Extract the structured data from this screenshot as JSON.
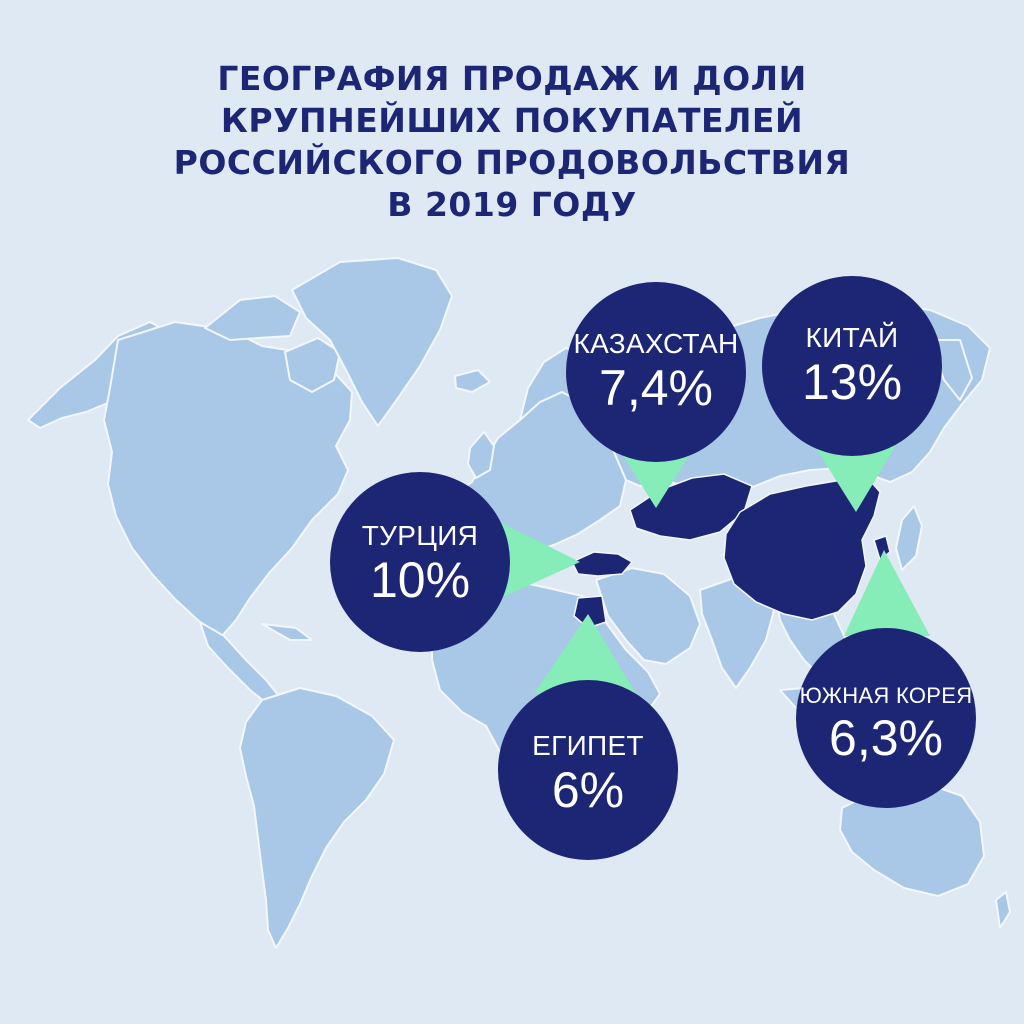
{
  "title": {
    "line1": "ГЕОГРАФИЯ ПРОДАЖ И ДОЛИ",
    "line2": "КРУПНЕЙШИХ ПОКУПАТЕЛЕЙ",
    "line3": "РОССИЙСКОГО ПРОДОВОЛЬСТВИЯ",
    "line4": "В 2019 ГОДУ"
  },
  "colors": {
    "background": "#dfe9f3",
    "land": "#a9c7e6",
    "land_border": "#f2f7fc",
    "highlight": "#1d2675",
    "bubble": "#1d2675",
    "pointer": "#86ecb8",
    "title": "#1d2675"
  },
  "markers": [
    {
      "id": "kazakhstan",
      "country": "КАЗАХСТАН",
      "value": "7,4%"
    },
    {
      "id": "china",
      "country": "КИТАЙ",
      "value": "13%"
    },
    {
      "id": "turkey",
      "country": "ТУРЦИЯ",
      "value": "10%"
    },
    {
      "id": "egypt",
      "country": "ЕГИПЕТ",
      "value": "6%"
    },
    {
      "id": "south-korea",
      "country": "ЮЖНАЯ КОРЕЯ",
      "value": "6,3%"
    }
  ]
}
